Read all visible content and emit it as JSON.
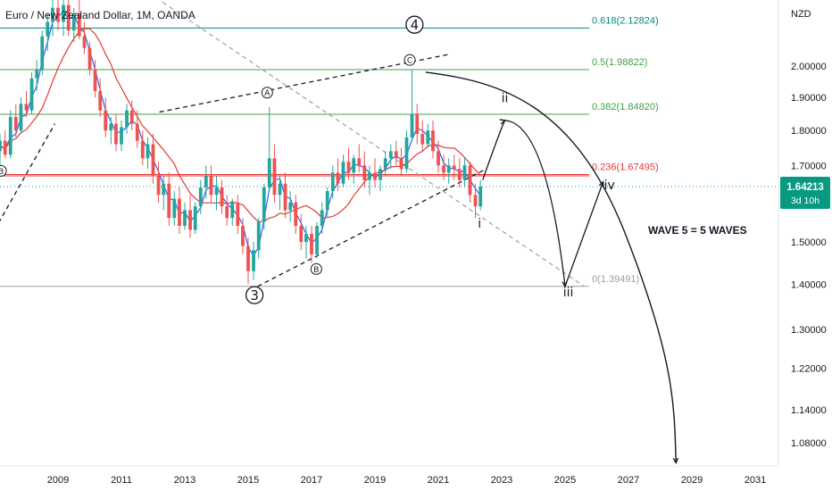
{
  "chart_data": {
    "type": "candlestick",
    "title": "Euro / New Zealand Dollar, 1M, OANDA",
    "currency": "NZD",
    "y_scale": "log",
    "ylim": [
      1.04,
      2.24
    ],
    "xlim": [
      2007.0,
      2032.3
    ],
    "x_ticks": [
      "2009",
      "2011",
      "2013",
      "2015",
      "2017",
      "2019",
      "2021",
      "2023",
      "2025",
      "2027",
      "2029",
      "2031"
    ],
    "y_ticks": [
      "2.00000",
      "1.90000",
      "1.80000",
      "1.70000",
      "1.50000",
      "1.40000",
      "1.30000",
      "1.22000",
      "1.14000",
      "1.08000"
    ],
    "price_label": {
      "value": 1.64213,
      "text": "1.64213",
      "countdown": "3d 10h"
    },
    "colors": {
      "up": "#26a69a",
      "down": "#ef5350",
      "ma_fast": "#2962ff",
      "ma_slow": "#e53935",
      "fib_teal": "#00897b",
      "fib_green": "#43a047",
      "fib_red": "#e53935",
      "fib_gray": "#9e9e9e"
    },
    "fib_levels": [
      {
        "ratio": "0.618",
        "label": "0.618(2.12824)",
        "price": 2.12824,
        "color": "#00897b"
      },
      {
        "ratio": "0.5",
        "label": "0.5(1.98822)",
        "price": 1.98822,
        "color": "#43a047"
      },
      {
        "ratio": "0.382",
        "label": "0.382(1.84820)",
        "price": 1.8482,
        "color": "#43a047"
      },
      {
        "ratio": "0.236",
        "label": "0.236(1.67495)",
        "price": 1.67495,
        "color": "#e53935"
      },
      {
        "ratio": "0",
        "label": "0(1.39491)",
        "price": 1.39491,
        "color": "#9e9e9e"
      }
    ],
    "wave_labels": [
      {
        "text": "4",
        "x": 2020.25,
        "price": 2.14,
        "style": "circle-large"
      },
      {
        "text": "3",
        "x": 2015.2,
        "price": 1.375,
        "style": "circle-large"
      },
      {
        "text": "A",
        "x": 2015.6,
        "price": 1.915,
        "style": "circle-small"
      },
      {
        "text": "B",
        "x": 2017.15,
        "price": 1.435,
        "style": "circle-small"
      },
      {
        "text": "C",
        "x": 2020.1,
        "price": 2.02,
        "style": "circle-small"
      },
      {
        "text": "B",
        "x": 2007.2,
        "price": 1.685,
        "style": "circle-small"
      },
      {
        "text": "i",
        "x": 2022.3,
        "price": 1.535,
        "style": "plain"
      },
      {
        "text": "ii",
        "x": 2023.1,
        "price": 1.885,
        "style": "plain"
      },
      {
        "text": "iii",
        "x": 2025.1,
        "price": 1.372,
        "style": "plain"
      },
      {
        "text": "iv",
        "x": 2026.4,
        "price": 1.635,
        "style": "plain"
      }
    ],
    "annotation": "WAVE 5 = 5 WAVES",
    "projection_path": [
      {
        "x": 2022.4,
        "price": 1.66
      },
      {
        "x": 2023.1,
        "price": 1.83
      },
      {
        "x": 2023.7,
        "price": 1.81
      },
      {
        "x": 2025.0,
        "price": 1.395
      },
      {
        "x": 2026.2,
        "price": 1.655
      }
    ],
    "big_curve": [
      {
        "x": 2020.6,
        "price": 1.98
      },
      {
        "x": 2023.0,
        "price": 1.95
      },
      {
        "x": 2025.3,
        "price": 1.85
      },
      {
        "x": 2026.9,
        "price": 1.52
      },
      {
        "x": 2028.0,
        "price": 1.22
      },
      {
        "x": 2028.5,
        "price": 1.045
      }
    ],
    "trendlines": [
      {
        "kind": "dashed-dark",
        "from": {
          "x": 2007.0,
          "price": 1.53
        },
        "to": {
          "x": 2008.9,
          "price": 1.82
        }
      },
      {
        "kind": "dashed-dark",
        "from": {
          "x": 2012.2,
          "price": 1.855
        },
        "to": {
          "x": 2021.4,
          "price": 2.04
        }
      },
      {
        "kind": "dashed-dark",
        "from": {
          "x": 2015.3,
          "price": 1.395
        },
        "to": {
          "x": 2022.5,
          "price": 1.69
        }
      },
      {
        "kind": "dashed-gray",
        "from": {
          "x": 2012.3,
          "price": 2.22
        },
        "to": {
          "x": 2025.6,
          "price": 1.395
        }
      }
    ],
    "candles": [
      {
        "t": 2007.0,
        "o": 1.7,
        "h": 1.76,
        "l": 1.64,
        "c": 1.74
      },
      {
        "t": 2007.17,
        "o": 1.74,
        "h": 1.79,
        "l": 1.7,
        "c": 1.77
      },
      {
        "t": 2007.33,
        "o": 1.77,
        "h": 1.8,
        "l": 1.72,
        "c": 1.73
      },
      {
        "t": 2007.5,
        "o": 1.73,
        "h": 1.86,
        "l": 1.72,
        "c": 1.84
      },
      {
        "t": 2007.67,
        "o": 1.84,
        "h": 1.88,
        "l": 1.78,
        "c": 1.8
      },
      {
        "t": 2007.83,
        "o": 1.8,
        "h": 1.9,
        "l": 1.79,
        "c": 1.88
      },
      {
        "t": 2008.0,
        "o": 1.88,
        "h": 1.92,
        "l": 1.84,
        "c": 1.86
      },
      {
        "t": 2008.17,
        "o": 1.86,
        "h": 1.98,
        "l": 1.85,
        "c": 1.96
      },
      {
        "t": 2008.33,
        "o": 1.96,
        "h": 2.02,
        "l": 1.92,
        "c": 1.99
      },
      {
        "t": 2008.5,
        "o": 1.99,
        "h": 2.12,
        "l": 1.97,
        "c": 2.1
      },
      {
        "t": 2008.67,
        "o": 2.1,
        "h": 2.18,
        "l": 2.05,
        "c": 2.15
      },
      {
        "t": 2008.83,
        "o": 2.15,
        "h": 2.24,
        "l": 2.1,
        "c": 2.2
      },
      {
        "t": 2009.0,
        "o": 2.2,
        "h": 2.24,
        "l": 2.12,
        "c": 2.15
      },
      {
        "t": 2009.17,
        "o": 2.15,
        "h": 2.24,
        "l": 2.1,
        "c": 2.21
      },
      {
        "t": 2009.33,
        "o": 2.21,
        "h": 2.24,
        "l": 2.1,
        "c": 2.12
      },
      {
        "t": 2009.5,
        "o": 2.12,
        "h": 2.2,
        "l": 2.08,
        "c": 2.18
      },
      {
        "t": 2009.67,
        "o": 2.18,
        "h": 2.23,
        "l": 2.09,
        "c": 2.1
      },
      {
        "t": 2009.83,
        "o": 2.1,
        "h": 2.15,
        "l": 2.04,
        "c": 2.06
      },
      {
        "t": 2010.0,
        "o": 2.06,
        "h": 2.08,
        "l": 1.97,
        "c": 1.99
      },
      {
        "t": 2010.17,
        "o": 1.99,
        "h": 2.02,
        "l": 1.9,
        "c": 1.92
      },
      {
        "t": 2010.33,
        "o": 1.92,
        "h": 1.96,
        "l": 1.84,
        "c": 1.86
      },
      {
        "t": 2010.5,
        "o": 1.86,
        "h": 1.9,
        "l": 1.78,
        "c": 1.8
      },
      {
        "t": 2010.67,
        "o": 1.8,
        "h": 1.84,
        "l": 1.76,
        "c": 1.82
      },
      {
        "t": 2010.83,
        "o": 1.82,
        "h": 1.85,
        "l": 1.74,
        "c": 1.76
      },
      {
        "t": 2011.0,
        "o": 1.76,
        "h": 1.83,
        "l": 1.74,
        "c": 1.81
      },
      {
        "t": 2011.17,
        "o": 1.81,
        "h": 1.88,
        "l": 1.79,
        "c": 1.86
      },
      {
        "t": 2011.33,
        "o": 1.86,
        "h": 1.89,
        "l": 1.8,
        "c": 1.82
      },
      {
        "t": 2011.5,
        "o": 1.82,
        "h": 1.86,
        "l": 1.75,
        "c": 1.77
      },
      {
        "t": 2011.67,
        "o": 1.77,
        "h": 1.8,
        "l": 1.7,
        "c": 1.72
      },
      {
        "t": 2011.83,
        "o": 1.72,
        "h": 1.78,
        "l": 1.69,
        "c": 1.76
      },
      {
        "t": 2012.0,
        "o": 1.76,
        "h": 1.79,
        "l": 1.65,
        "c": 1.67
      },
      {
        "t": 2012.17,
        "o": 1.67,
        "h": 1.71,
        "l": 1.6,
        "c": 1.62
      },
      {
        "t": 2012.33,
        "o": 1.62,
        "h": 1.67,
        "l": 1.58,
        "c": 1.65
      },
      {
        "t": 2012.5,
        "o": 1.65,
        "h": 1.68,
        "l": 1.54,
        "c": 1.56
      },
      {
        "t": 2012.67,
        "o": 1.56,
        "h": 1.63,
        "l": 1.54,
        "c": 1.61
      },
      {
        "t": 2012.83,
        "o": 1.61,
        "h": 1.64,
        "l": 1.52,
        "c": 1.54
      },
      {
        "t": 2013.0,
        "o": 1.54,
        "h": 1.6,
        "l": 1.53,
        "c": 1.58
      },
      {
        "t": 2013.17,
        "o": 1.58,
        "h": 1.62,
        "l": 1.51,
        "c": 1.53
      },
      {
        "t": 2013.33,
        "o": 1.53,
        "h": 1.6,
        "l": 1.52,
        "c": 1.59
      },
      {
        "t": 2013.5,
        "o": 1.59,
        "h": 1.66,
        "l": 1.57,
        "c": 1.64
      },
      {
        "t": 2013.67,
        "o": 1.64,
        "h": 1.7,
        "l": 1.61,
        "c": 1.67
      },
      {
        "t": 2013.83,
        "o": 1.67,
        "h": 1.7,
        "l": 1.6,
        "c": 1.62
      },
      {
        "t": 2014.0,
        "o": 1.62,
        "h": 1.67,
        "l": 1.58,
        "c": 1.64
      },
      {
        "t": 2014.17,
        "o": 1.64,
        "h": 1.66,
        "l": 1.57,
        "c": 1.59
      },
      {
        "t": 2014.33,
        "o": 1.59,
        "h": 1.62,
        "l": 1.54,
        "c": 1.56
      },
      {
        "t": 2014.5,
        "o": 1.56,
        "h": 1.61,
        "l": 1.54,
        "c": 1.6
      },
      {
        "t": 2014.67,
        "o": 1.6,
        "h": 1.62,
        "l": 1.52,
        "c": 1.54
      },
      {
        "t": 2014.83,
        "o": 1.54,
        "h": 1.56,
        "l": 1.47,
        "c": 1.49
      },
      {
        "t": 2015.0,
        "o": 1.49,
        "h": 1.51,
        "l": 1.4,
        "c": 1.43
      },
      {
        "t": 2015.17,
        "o": 1.43,
        "h": 1.5,
        "l": 1.41,
        "c": 1.48
      },
      {
        "t": 2015.33,
        "o": 1.48,
        "h": 1.56,
        "l": 1.46,
        "c": 1.55
      },
      {
        "t": 2015.5,
        "o": 1.55,
        "h": 1.65,
        "l": 1.53,
        "c": 1.64
      },
      {
        "t": 2015.67,
        "o": 1.64,
        "h": 1.87,
        "l": 1.63,
        "c": 1.72
      },
      {
        "t": 2015.83,
        "o": 1.72,
        "h": 1.76,
        "l": 1.6,
        "c": 1.62
      },
      {
        "t": 2016.0,
        "o": 1.62,
        "h": 1.67,
        "l": 1.58,
        "c": 1.65
      },
      {
        "t": 2016.17,
        "o": 1.65,
        "h": 1.68,
        "l": 1.56,
        "c": 1.58
      },
      {
        "t": 2016.33,
        "o": 1.58,
        "h": 1.63,
        "l": 1.55,
        "c": 1.6
      },
      {
        "t": 2016.5,
        "o": 1.6,
        "h": 1.62,
        "l": 1.52,
        "c": 1.54
      },
      {
        "t": 2016.67,
        "o": 1.54,
        "h": 1.57,
        "l": 1.48,
        "c": 1.5
      },
      {
        "t": 2016.83,
        "o": 1.5,
        "h": 1.54,
        "l": 1.46,
        "c": 1.52
      },
      {
        "t": 2017.0,
        "o": 1.52,
        "h": 1.54,
        "l": 1.45,
        "c": 1.47
      },
      {
        "t": 2017.17,
        "o": 1.47,
        "h": 1.55,
        "l": 1.46,
        "c": 1.54
      },
      {
        "t": 2017.33,
        "o": 1.54,
        "h": 1.6,
        "l": 1.52,
        "c": 1.58
      },
      {
        "t": 2017.5,
        "o": 1.58,
        "h": 1.64,
        "l": 1.56,
        "c": 1.63
      },
      {
        "t": 2017.67,
        "o": 1.63,
        "h": 1.7,
        "l": 1.61,
        "c": 1.68
      },
      {
        "t": 2017.83,
        "o": 1.68,
        "h": 1.72,
        "l": 1.63,
        "c": 1.65
      },
      {
        "t": 2018.0,
        "o": 1.65,
        "h": 1.73,
        "l": 1.64,
        "c": 1.71
      },
      {
        "t": 2018.17,
        "o": 1.71,
        "h": 1.75,
        "l": 1.66,
        "c": 1.68
      },
      {
        "t": 2018.33,
        "o": 1.68,
        "h": 1.73,
        "l": 1.65,
        "c": 1.72
      },
      {
        "t": 2018.5,
        "o": 1.72,
        "h": 1.76,
        "l": 1.68,
        "c": 1.7
      },
      {
        "t": 2018.67,
        "o": 1.7,
        "h": 1.74,
        "l": 1.64,
        "c": 1.66
      },
      {
        "t": 2018.83,
        "o": 1.66,
        "h": 1.7,
        "l": 1.62,
        "c": 1.68
      },
      {
        "t": 2019.0,
        "o": 1.68,
        "h": 1.72,
        "l": 1.64,
        "c": 1.66
      },
      {
        "t": 2019.17,
        "o": 1.66,
        "h": 1.7,
        "l": 1.63,
        "c": 1.69
      },
      {
        "t": 2019.33,
        "o": 1.69,
        "h": 1.74,
        "l": 1.67,
        "c": 1.72
      },
      {
        "t": 2019.5,
        "o": 1.72,
        "h": 1.76,
        "l": 1.69,
        "c": 1.74
      },
      {
        "t": 2019.67,
        "o": 1.74,
        "h": 1.77,
        "l": 1.7,
        "c": 1.72
      },
      {
        "t": 2019.83,
        "o": 1.72,
        "h": 1.75,
        "l": 1.67,
        "c": 1.69
      },
      {
        "t": 2020.0,
        "o": 1.69,
        "h": 1.8,
        "l": 1.68,
        "c": 1.78
      },
      {
        "t": 2020.17,
        "o": 1.78,
        "h": 1.99,
        "l": 1.77,
        "c": 1.85
      },
      {
        "t": 2020.33,
        "o": 1.85,
        "h": 1.88,
        "l": 1.76,
        "c": 1.79
      },
      {
        "t": 2020.5,
        "o": 1.79,
        "h": 1.83,
        "l": 1.74,
        "c": 1.76
      },
      {
        "t": 2020.67,
        "o": 1.76,
        "h": 1.82,
        "l": 1.75,
        "c": 1.8
      },
      {
        "t": 2020.83,
        "o": 1.8,
        "h": 1.83,
        "l": 1.72,
        "c": 1.74
      },
      {
        "t": 2021.0,
        "o": 1.74,
        "h": 1.77,
        "l": 1.68,
        "c": 1.7
      },
      {
        "t": 2021.17,
        "o": 1.7,
        "h": 1.73,
        "l": 1.66,
        "c": 1.68
      },
      {
        "t": 2021.33,
        "o": 1.68,
        "h": 1.72,
        "l": 1.65,
        "c": 1.7
      },
      {
        "t": 2021.5,
        "o": 1.7,
        "h": 1.73,
        "l": 1.66,
        "c": 1.69
      },
      {
        "t": 2021.67,
        "o": 1.69,
        "h": 1.72,
        "l": 1.64,
        "c": 1.66
      },
      {
        "t": 2021.83,
        "o": 1.66,
        "h": 1.72,
        "l": 1.64,
        "c": 1.7
      },
      {
        "t": 2022.0,
        "o": 1.7,
        "h": 1.71,
        "l": 1.6,
        "c": 1.62
      },
      {
        "t": 2022.17,
        "o": 1.62,
        "h": 1.65,
        "l": 1.56,
        "c": 1.59
      },
      {
        "t": 2022.33,
        "o": 1.59,
        "h": 1.66,
        "l": 1.58,
        "c": 1.642
      }
    ]
  }
}
